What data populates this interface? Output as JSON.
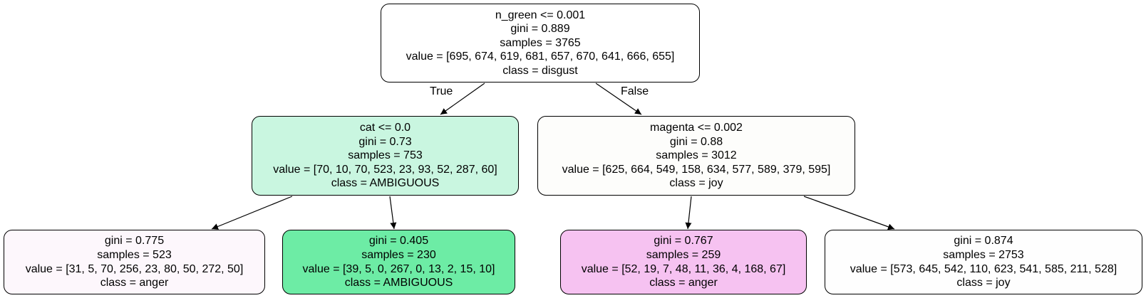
{
  "nodes": {
    "root": {
      "lines": [
        "n_green <= 0.001",
        "gini = 0.889",
        "samples = 3765",
        "value = [695, 674, 619, 681, 657, 670, 641, 666, 655]",
        "class = disgust"
      ],
      "fill": "#ffffff"
    },
    "left": {
      "lines": [
        "cat <= 0.0",
        "gini = 0.73",
        "samples = 753",
        "value = [70, 10, 70, 523, 23, 93, 52, 287, 60]",
        "class = AMBIGUOUS"
      ],
      "fill": "#c9f6e0"
    },
    "right": {
      "lines": [
        "magenta <= 0.002",
        "gini = 0.88",
        "samples = 3012",
        "value = [625, 664, 549, 158, 634, 577, 589, 379, 595]",
        "class = joy"
      ],
      "fill": "#fdfdfb"
    },
    "ll": {
      "lines": [
        "gini = 0.775",
        "samples = 523",
        "value = [31, 5, 70, 256, 23, 80, 50, 272, 50]",
        "class = anger"
      ],
      "fill": "#fdf7fc"
    },
    "lr": {
      "lines": [
        "gini = 0.405",
        "samples = 230",
        "value = [39, 5, 0, 267, 0, 13, 2, 15, 10]",
        "class = AMBIGUOUS"
      ],
      "fill": "#6deca5"
    },
    "rl": {
      "lines": [
        "gini = 0.767",
        "samples = 259",
        "value = [52, 19, 7, 48, 11, 36, 4, 168, 67]",
        "class = anger"
      ],
      "fill": "#f6c2f1"
    },
    "rr": {
      "lines": [
        "gini = 0.874",
        "samples = 2753",
        "value = [573, 645, 542, 110, 623, 541, 585, 211, 528]",
        "class = joy"
      ],
      "fill": "#fefefe"
    }
  },
  "edge_labels": {
    "true": "True",
    "false": "False"
  }
}
